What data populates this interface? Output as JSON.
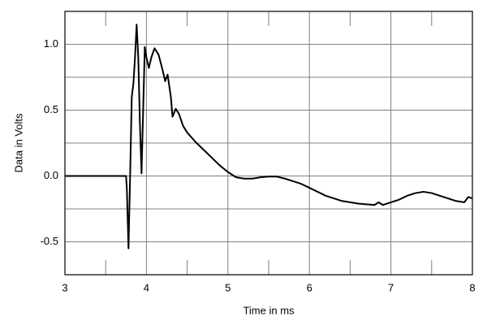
{
  "chart_data": {
    "type": "line",
    "x_label": "Time in ms",
    "y_label": "Data in Volts",
    "x": [
      3,
      3.5,
      3.75,
      3.76,
      3.78,
      3.8,
      3.82,
      3.84,
      3.86,
      3.88,
      3.9,
      3.92,
      3.94,
      3.96,
      3.98,
      4.0,
      4.03,
      4.06,
      4.1,
      4.15,
      4.2,
      4.23,
      4.26,
      4.3,
      4.32,
      4.36,
      4.4,
      4.45,
      4.5,
      4.6,
      4.7,
      4.8,
      4.9,
      5.0,
      5.1,
      5.2,
      5.3,
      5.4,
      5.5,
      5.6,
      5.7,
      5.8,
      5.9,
      6.0,
      6.1,
      6.2,
      6.3,
      6.4,
      6.5,
      6.6,
      6.7,
      6.8,
      6.85,
      6.9,
      7.0,
      7.1,
      7.2,
      7.3,
      7.4,
      7.5,
      7.6,
      7.7,
      7.8,
      7.9,
      7.95,
      8.0
    ],
    "series": [
      {
        "color": "#000000",
        "values": [
          0,
          0,
          0,
          -0.1,
          -0.55,
          0.0,
          0.6,
          0.7,
          0.9,
          1.15,
          0.9,
          0.4,
          0.02,
          0.5,
          0.98,
          0.9,
          0.82,
          0.9,
          0.97,
          0.92,
          0.8,
          0.72,
          0.77,
          0.6,
          0.45,
          0.51,
          0.47,
          0.38,
          0.33,
          0.26,
          0.2,
          0.14,
          0.08,
          0.03,
          -0.01,
          -0.02,
          -0.02,
          -0.01,
          -0.005,
          -0.005,
          -0.02,
          -0.04,
          -0.06,
          -0.09,
          -0.12,
          -0.15,
          -0.17,
          -0.19,
          -0.2,
          -0.21,
          -0.215,
          -0.22,
          -0.2,
          -0.22,
          -0.2,
          -0.18,
          -0.15,
          -0.13,
          -0.12,
          -0.13,
          -0.15,
          -0.17,
          -0.19,
          -0.2,
          -0.16,
          -0.17
        ]
      }
    ],
    "xlim": [
      3,
      8
    ],
    "xticks": [
      3,
      4,
      5,
      6,
      7,
      8
    ],
    "x_minor_ticks": [
      3.5,
      4.5,
      5.5,
      6.5,
      7.5
    ],
    "ylim": [
      -0.75,
      1.25
    ],
    "yticks": [
      -0.5,
      {
        "value": 0,
        "label": "0.0"
      },
      0.5,
      {
        "value": 1,
        "label": "1.0"
      }
    ],
    "y_minor_ticks": [
      -0.25,
      0.25,
      0.75
    ],
    "grid": true
  }
}
